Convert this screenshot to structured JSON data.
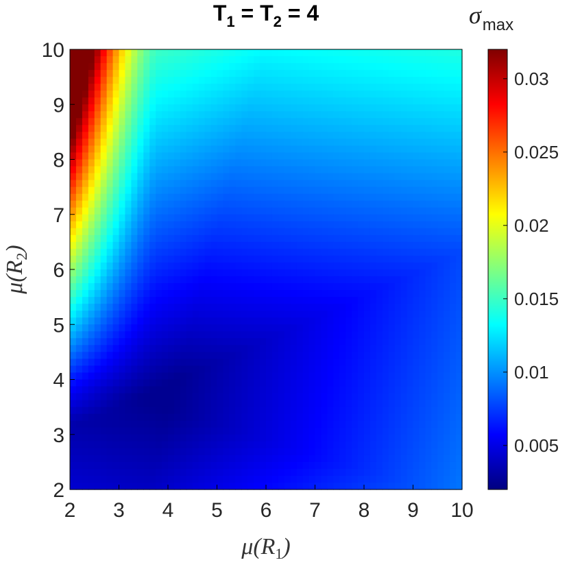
{
  "chart_data": {
    "type": "heatmap",
    "title": {
      "base": "T",
      "sub1": "1",
      "mid": " = T",
      "sub2": "2",
      "tail": " = 4"
    },
    "xlabel": {
      "prefix": "μ(R",
      "sub": "1",
      "suffix": ")"
    },
    "ylabel": {
      "prefix": "μ(R",
      "sub": "2",
      "suffix": ")"
    },
    "colorbar_label": {
      "symbol": "σ",
      "sub": "max"
    },
    "xlim": [
      2,
      10
    ],
    "ylim": [
      2,
      10
    ],
    "xticks": [
      "2",
      "3",
      "4",
      "5",
      "6",
      "7",
      "8",
      "9",
      "10"
    ],
    "yticks": [
      "2",
      "3",
      "4",
      "5",
      "6",
      "7",
      "8",
      "9",
      "10"
    ],
    "colorbar_range": [
      0.002,
      0.032
    ],
    "colorbar_ticks": [
      {
        "value": 0.005,
        "label": "0.005"
      },
      {
        "value": 0.01,
        "label": "0.01"
      },
      {
        "value": 0.015,
        "label": "0.015"
      },
      {
        "value": 0.02,
        "label": "0.02"
      },
      {
        "value": 0.025,
        "label": "0.025"
      },
      {
        "value": 0.03,
        "label": "0.03"
      }
    ],
    "colormap": "jet",
    "grid_resolution": {
      "nx": 64,
      "ny": 64
    },
    "minimum": {
      "x": 4.2,
      "y": 4.0,
      "value": 0.0025
    },
    "maximum": {
      "x": 2,
      "y": 10,
      "value": 0.032
    },
    "description_values": {
      "low_right_edge_value": 0.0065,
      "left_edge_mid_value": 0.012
    },
    "grid": "off",
    "legend": "colorbar-right"
  }
}
